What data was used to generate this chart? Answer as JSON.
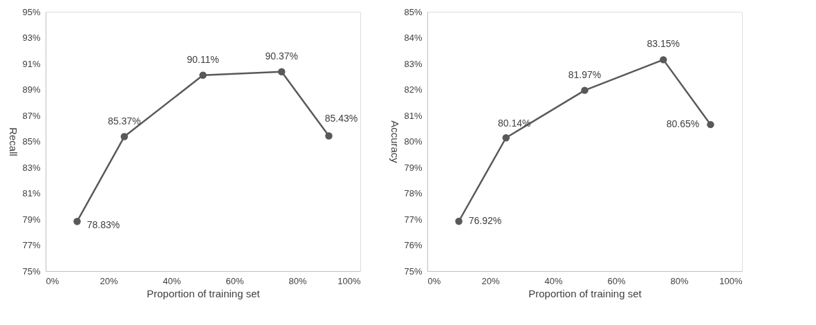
{
  "chart_data": [
    {
      "type": "line",
      "xlabel": "Proportion of training set",
      "ylabel": "Recall",
      "x": [
        10,
        25,
        50,
        75,
        90
      ],
      "series": [
        {
          "color": "#595959",
          "values": [
            78.83,
            85.37,
            90.11,
            90.37,
            85.43
          ],
          "value_labels": [
            "78.83%",
            "85.37%",
            "90.11%",
            "90.37%",
            "85.43%"
          ]
        }
      ],
      "xlim": [
        0,
        100
      ],
      "xticks": [
        {
          "value": 0,
          "label": "0%"
        },
        {
          "value": 20,
          "label": "20%"
        },
        {
          "value": 40,
          "label": "40%"
        },
        {
          "value": 60,
          "label": "60%"
        },
        {
          "value": 80,
          "label": "80%"
        },
        {
          "value": 100,
          "label": "100%"
        }
      ],
      "ylim": [
        75,
        95
      ],
      "yticks": [
        {
          "value": 75,
          "label": "75%"
        },
        {
          "value": 77,
          "label": "77%"
        },
        {
          "value": 79,
          "label": "79%"
        },
        {
          "value": 81,
          "label": "81%"
        },
        {
          "value": 83,
          "label": "83%"
        },
        {
          "value": 85,
          "label": "85%"
        },
        {
          "value": 87,
          "label": "87%"
        },
        {
          "value": 89,
          "label": "89%"
        },
        {
          "value": 91,
          "label": "91%"
        },
        {
          "value": 93,
          "label": "93%"
        },
        {
          "value": 95,
          "label": "95%"
        }
      ],
      "marker": "circle",
      "line_style": "solid",
      "grid": false
    },
    {
      "type": "line",
      "xlabel": "Proportion of training set",
      "ylabel": "Accuracy",
      "x": [
        10,
        25,
        50,
        75,
        90
      ],
      "series": [
        {
          "color": "#595959",
          "values": [
            76.92,
            80.14,
            81.97,
            83.15,
            80.65
          ],
          "value_labels": [
            "76.92%",
            "80.14%",
            "81.97%",
            "83.15%",
            "80.65%"
          ]
        }
      ],
      "xlim": [
        0,
        100
      ],
      "xticks": [
        {
          "value": 0,
          "label": "0%"
        },
        {
          "value": 20,
          "label": "20%"
        },
        {
          "value": 40,
          "label": "40%"
        },
        {
          "value": 60,
          "label": "60%"
        },
        {
          "value": 80,
          "label": "80%"
        },
        {
          "value": 100,
          "label": "100%"
        }
      ],
      "ylim": [
        75,
        85
      ],
      "yticks": [
        {
          "value": 75,
          "label": "75%"
        },
        {
          "value": 76,
          "label": "76%"
        },
        {
          "value": 77,
          "label": "77%"
        },
        {
          "value": 78,
          "label": "78%"
        },
        {
          "value": 79,
          "label": "79%"
        },
        {
          "value": 80,
          "label": "80%"
        },
        {
          "value": 81,
          "label": "81%"
        },
        {
          "value": 82,
          "label": "82%"
        },
        {
          "value": 83,
          "label": "83%"
        },
        {
          "value": 84,
          "label": "84%"
        },
        {
          "value": 85,
          "label": "85%"
        }
      ],
      "marker": "circle",
      "line_style": "solid",
      "grid": false
    }
  ]
}
